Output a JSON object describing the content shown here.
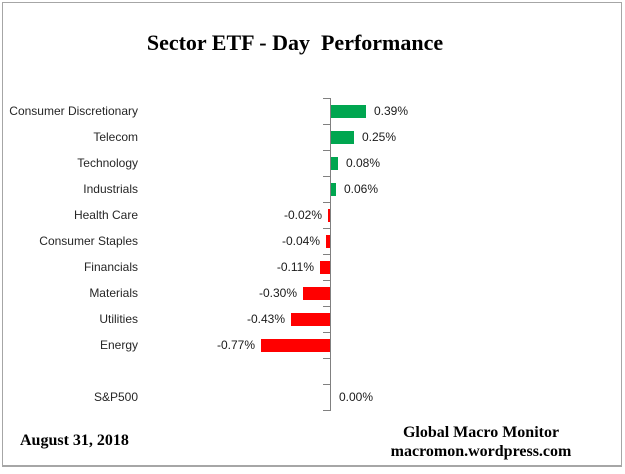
{
  "chart_data": {
    "type": "bar",
    "orientation": "horizontal",
    "title": "Sector ETF - Day  Performance",
    "categories": [
      "Consumer Discretionary",
      "Telecom",
      "Technology",
      "Industrials",
      "Health Care",
      "Consumer Staples",
      "Financials",
      "Materials",
      "Utilities",
      "Energy",
      "",
      "S&P500"
    ],
    "values": [
      0.39,
      0.25,
      0.08,
      0.06,
      -0.02,
      -0.04,
      -0.11,
      -0.3,
      -0.43,
      -0.77,
      null,
      0.0
    ],
    "value_labels": [
      "0.39%",
      "0.25%",
      "0.08%",
      "0.06%",
      "-0.02%",
      "-0.04%",
      "-0.11%",
      "-0.30%",
      "-0.43%",
      "-0.77%",
      "",
      "0.00%"
    ],
    "unit": "%",
    "xlabel": "",
    "ylabel": "",
    "xlim": [
      -0.9,
      0.55
    ],
    "grid": false,
    "legend": false,
    "colors": {
      "positive": "#00A650",
      "negative": "#FF0000",
      "axis": "#808080"
    }
  },
  "footer": {
    "date": "August 31, 2018",
    "attribution_line1": "Global Macro Monitor",
    "attribution_line2": "macromon.wordpress.com"
  }
}
